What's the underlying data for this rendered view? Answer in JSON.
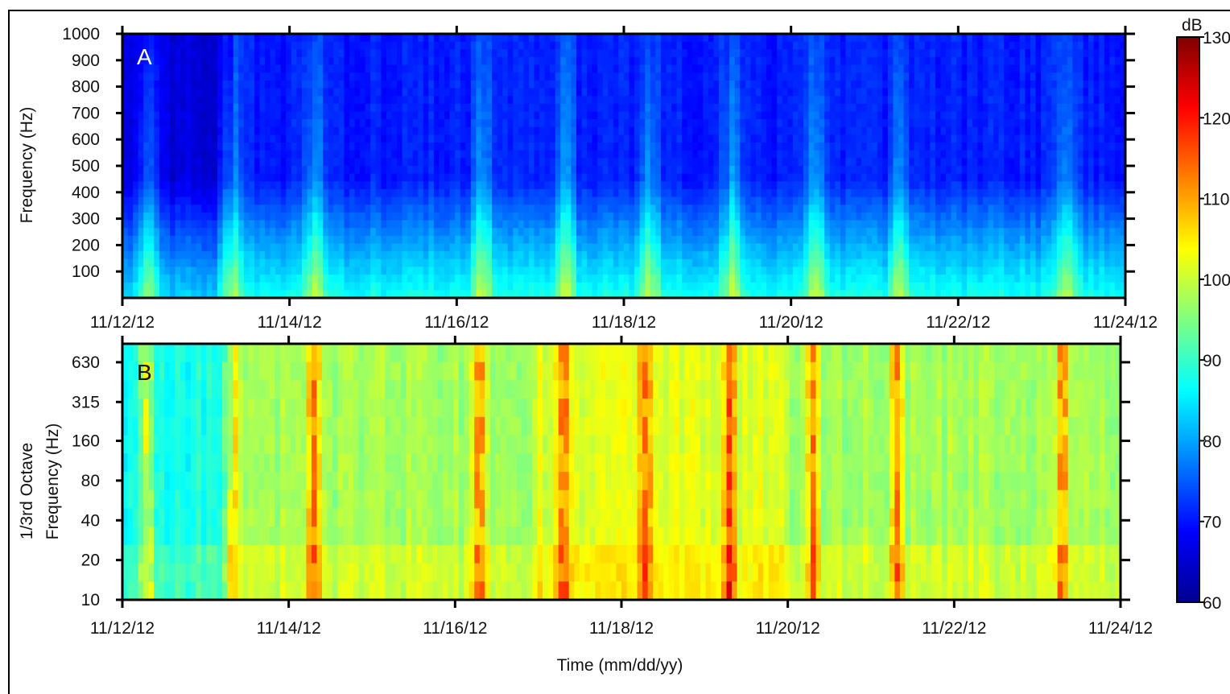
{
  "chart_data": [
    {
      "panel": "A",
      "type": "heatmap",
      "title": "",
      "xlabel": "",
      "ylabel": "Frequency (Hz)",
      "x_ticks": [
        "11/12/12",
        "11/14/12",
        "11/16/12",
        "11/18/12",
        "11/20/12",
        "11/22/12",
        "11/24/12"
      ],
      "y_ticks": [
        "100",
        "200",
        "300",
        "400",
        "500",
        "600",
        "700",
        "800",
        "900",
        "1000"
      ],
      "ylim": [
        0,
        1000
      ],
      "y_scale": "linear",
      "value_range_db": [
        60,
        130
      ],
      "background_level_db": 68,
      "low_freq_level_db": 85,
      "quiet_period": [
        "11/12/12",
        "11/13/12"
      ],
      "broadband_events": [
        "11/12/12",
        "11/13/12",
        "11/14/12",
        "11/16/12",
        "11/17/12",
        "11/18/12",
        "11/19/12",
        "11/20/12",
        "11/21/12",
        "11/23/12"
      ]
    },
    {
      "panel": "B",
      "type": "heatmap",
      "title": "",
      "xlabel": "Time (mm/dd/yy)",
      "ylabel": "1/3rd Octave Frequency (Hz)",
      "ylabel_lines": [
        "1/3rd Octave",
        "Frequency (Hz)"
      ],
      "x_ticks": [
        "11/12/12",
        "11/14/12",
        "11/16/12",
        "11/18/12",
        "11/20/12",
        "11/22/12",
        "11/24/12"
      ],
      "y_ticks": [
        "10",
        "20",
        "40",
        "80",
        "160",
        "315",
        "630"
      ],
      "y_scale": "log2",
      "value_range_db": [
        60,
        130
      ],
      "typical_level_db": 97,
      "peak_level_db": 120,
      "loud_period": [
        "11/17/12",
        "11/20/12"
      ]
    }
  ],
  "colorbar": {
    "unit_label": "dB",
    "ticks": [
      "60",
      "70",
      "80",
      "90",
      "100",
      "110",
      "120",
      "130"
    ],
    "range": [
      60,
      130
    ],
    "colormap": "jet"
  },
  "panel_letters": {
    "a": "A",
    "b": "B"
  },
  "colors": {
    "text": "#111111",
    "axis": "#000000",
    "letter_a": "#ffffff",
    "letter_b": "#111111"
  }
}
